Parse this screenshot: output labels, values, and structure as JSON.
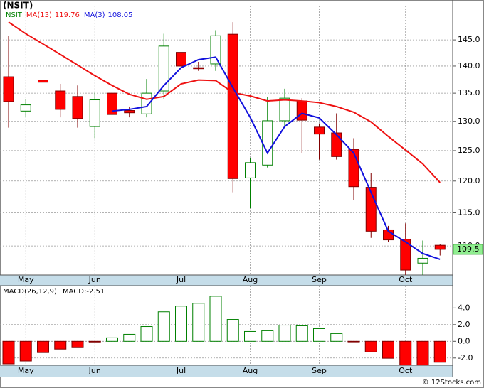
{
  "chart_data": [
    {
      "type": "candlestick",
      "title": "(NSIT)",
      "symbol": "NSIT",
      "categories": [
        null,
        "May",
        null,
        null,
        null,
        "Jun",
        null,
        null,
        null,
        null,
        "Jul",
        null,
        null,
        null,
        "Aug",
        null,
        null,
        null,
        "Sep",
        null,
        null,
        null,
        null,
        "Oct",
        null,
        null
      ],
      "open": [
        138.0,
        131.8,
        137.4,
        135.4,
        134.4,
        129.1,
        135.0,
        131.9,
        131.3,
        135.4,
        142.6,
        139.7,
        140.4,
        146.1,
        120.5,
        122.6,
        130.1,
        133.6,
        129.0,
        128.0,
        125.2,
        119.0,
        112.4,
        111.0,
        107.5,
        110.1
      ],
      "high": [
        145.8,
        133.9,
        139.5,
        136.7,
        136.4,
        135.1,
        139.5,
        132.6,
        137.6,
        146.2,
        146.8,
        140.8,
        146.9,
        148.5,
        123.7,
        134.3,
        135.8,
        134.1,
        129.5,
        131.4,
        127.1,
        121.3,
        113.0,
        113.4,
        110.8,
        110.3
      ],
      "low": [
        128.9,
        130.7,
        132.9,
        130.7,
        128.9,
        127.1,
        130.6,
        130.7,
        130.7,
        133.9,
        138.4,
        139.1,
        139.1,
        118.2,
        115.7,
        122.2,
        129.1,
        124.6,
        123.5,
        123.5,
        117.0,
        111.2,
        110.6,
        105.8,
        105.8,
        108.6
      ],
      "close": [
        133.5,
        132.9,
        137.0,
        132.1,
        130.5,
        133.8,
        131.2,
        131.5,
        135.0,
        143.8,
        140.0,
        139.5,
        145.8,
        120.4,
        123.0,
        130.1,
        134.1,
        130.2,
        127.8,
        124.0,
        119.1,
        112.2,
        110.9,
        106.5,
        108.2,
        109.5
      ],
      "up_color": "#008000",
      "down_color": "#ff0000",
      "last_price_color": "#90ee90",
      "series": [
        {
          "name": "MA(13)",
          "color": "#ee1111",
          "values": [
            148.5,
            146.2,
            144.2,
            142.2,
            140.2,
            138.2,
            136.4,
            134.8,
            133.9,
            134.4,
            136.7,
            137.4,
            137.3,
            135.1,
            134.5,
            133.6,
            133.8,
            133.6,
            133.3,
            132.6,
            131.6,
            129.9,
            127.4,
            125.1,
            122.8,
            119.76
          ]
        },
        {
          "name": "MA(3)",
          "color": "#1111dd",
          "values": [
            null,
            null,
            null,
            null,
            null,
            null,
            131.8,
            132.1,
            132.6,
            136.4,
            139.7,
            141.2,
            141.7,
            136.0,
            130.7,
            124.6,
            129.1,
            131.4,
            130.6,
            127.7,
            124.6,
            118.2,
            112.2,
            110.6,
            108.9,
            108.05
          ]
        }
      ],
      "ylim": [
        105.8,
        151.8
      ],
      "log_scale": true,
      "grid": true,
      "yticks": [
        {
          "value": 110,
          "label": "110.0"
        },
        {
          "value": 115,
          "label": "115.0"
        },
        {
          "value": 120,
          "label": "120.0"
        },
        {
          "value": 125,
          "label": "125.0"
        },
        {
          "value": 130,
          "label": "130.0"
        },
        {
          "value": 135,
          "label": "135.0"
        },
        {
          "value": 140,
          "label": "140.0"
        },
        {
          "value": 145,
          "label": "145.0"
        }
      ]
    },
    {
      "type": "bar",
      "title": "MACD(26,12,9)",
      "categories": [
        null,
        "May",
        null,
        null,
        null,
        "Jun",
        null,
        null,
        null,
        null,
        "Jul",
        null,
        null,
        null,
        "Aug",
        null,
        null,
        null,
        "Sep",
        null,
        null,
        null,
        null,
        "Oct",
        null,
        null
      ],
      "series": [
        {
          "name": "MACD:",
          "values": [
            -2.7,
            -2.36,
            -1.35,
            -0.93,
            -0.76,
            -0.08,
            0.42,
            0.84,
            1.77,
            3.54,
            4.22,
            4.56,
            5.4,
            2.62,
            1.18,
            1.27,
            1.94,
            1.86,
            1.52,
            0.93,
            -0.03,
            -1.27,
            -2.03,
            -2.85,
            -2.85,
            -2.51
          ]
        }
      ],
      "up_color": "#008000",
      "down_color": "#ff0000",
      "ylim": [
        -2.87,
        6.67
      ],
      "grid": true,
      "yticks": [
        {
          "value": -2,
          "label": "-2.0"
        },
        {
          "value": 0,
          "label": "0.0"
        },
        {
          "value": 2,
          "label": "2.0"
        },
        {
          "value": 4,
          "label": "4.0"
        }
      ]
    }
  ],
  "footer": "© 12Stocks.com"
}
